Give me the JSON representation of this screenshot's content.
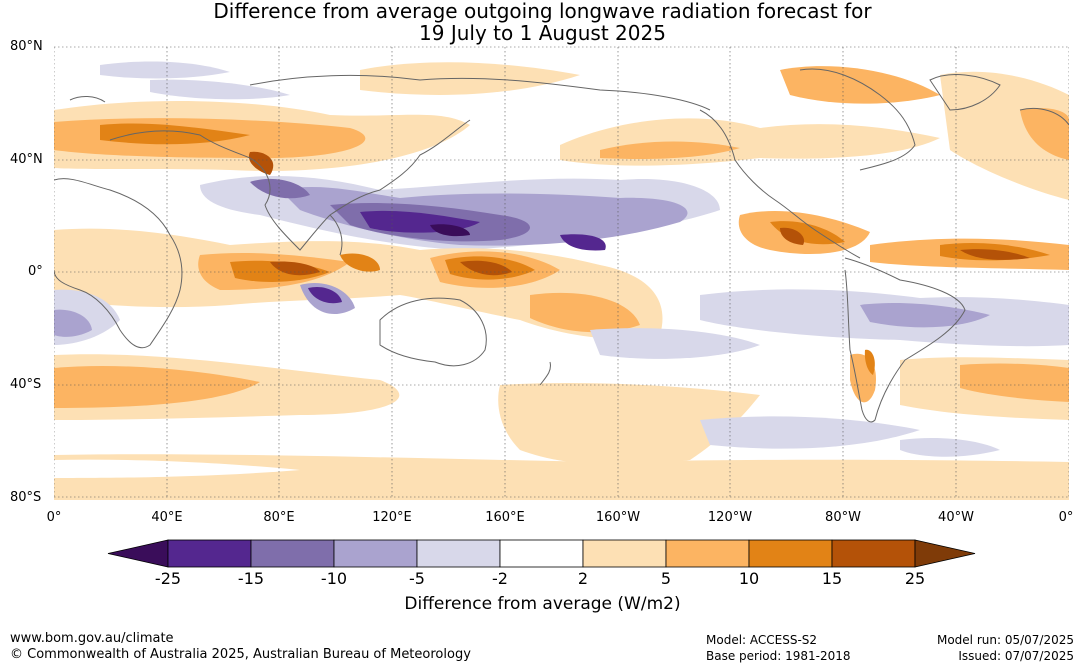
{
  "title_line1": "Difference from average outgoing longwave radiation forecast for",
  "title_line2": "19 July to 1 August 2025",
  "lat_labels": [
    "80°N",
    "40°N",
    "0°",
    "40°S",
    "80°S"
  ],
  "lon_labels": [
    "0°",
    "40°E",
    "80°E",
    "120°E",
    "160°E",
    "160°W",
    "120°W",
    "80°W",
    "40°W",
    "0°"
  ],
  "colorbar": {
    "title": "Difference from average (W/m2)",
    "ticks": [
      "-25",
      "-15",
      "-10",
      "-5",
      "-2",
      "2",
      "5",
      "10",
      "15",
      "25"
    ],
    "colors": [
      "#3a0d5a",
      "#54278f",
      "#7f6eab",
      "#aaa3cf",
      "#d8d8ea",
      "#ffffff",
      "#fde0b4",
      "#fcb462",
      "#e28316",
      "#b45208",
      "#7f3b08"
    ]
  },
  "footer": {
    "website": "www.bom.gov.au/climate",
    "copyright": "© Commonwealth of Australia 2025, Australian Bureau of Meteorology",
    "model": "Model: ACCESS-S2",
    "base_period": "Base period: 1981-2018",
    "model_run": "Model run: 05/07/2025",
    "issued": "Issued: 07/07/2025"
  }
}
